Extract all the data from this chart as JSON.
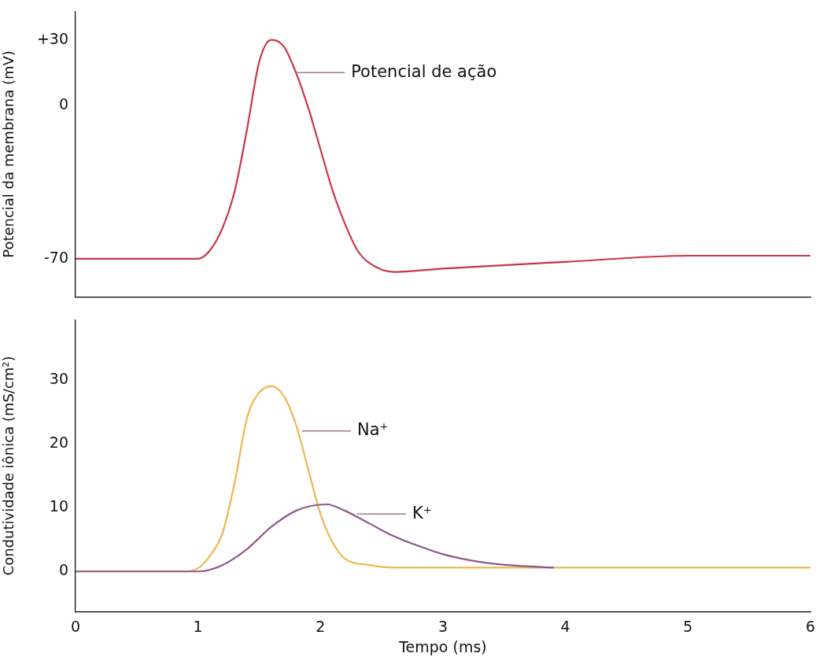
{
  "chart_data": [
    {
      "type": "line",
      "ylabel": "Potencial da membrana (mV)",
      "xlim": [
        0,
        6
      ],
      "ylim": [
        -87.5,
        43
      ],
      "xticks": [
        0,
        1,
        2,
        3,
        4,
        5,
        6
      ],
      "yticks": [
        {
          "value": 30,
          "label": "+30"
        },
        0,
        -70
      ],
      "tick_labels": "y",
      "grid": false,
      "legend": false,
      "marker": "none",
      "line_style": "solid",
      "series": [
        {
          "color": "#c8364a",
          "x": [
            0,
            0.5,
            1,
            1.1,
            1.2,
            1.3,
            1.4,
            1.5,
            1.6,
            1.7,
            1.8,
            1.9,
            2,
            2.1,
            2.2,
            2.3,
            2.4,
            2.6,
            3,
            4,
            5,
            6
          ],
          "values": [
            -70,
            -70,
            -70,
            -66,
            -56,
            -39,
            -11,
            20,
            30,
            27,
            15,
            -1,
            -20,
            -39,
            -54,
            -66,
            -72,
            -76,
            -74.5,
            -71.4,
            -68.6,
            -68.6
          ]
        }
      ],
      "annotations": [
        {
          "text": "Potencial de ação",
          "x": 1.8,
          "y": 15
        }
      ]
    },
    {
      "type": "line",
      "ylabel": "Condutividade iônica (mS/cm²)",
      "xlabel": "Tempo (ms)",
      "xlim": [
        0,
        6
      ],
      "ylim": [
        -6.3,
        39.4
      ],
      "xticks": [
        0,
        1,
        2,
        3,
        4,
        5,
        6
      ],
      "yticks": [
        0,
        10,
        20,
        30
      ],
      "grid": false,
      "legend": false,
      "marker": "none",
      "line_style": "solid",
      "series": [
        {
          "color": "#8e5a8e",
          "x": [
            0,
            0.5,
            1,
            1.2,
            1.4,
            1.6,
            1.8,
            2.05,
            2.2,
            2.4,
            2.6,
            2.8,
            3,
            3.3,
            3.6,
            3.9
          ],
          "values": [
            0,
            0,
            0,
            1,
            3.5,
            7,
            9.5,
            10.5,
            9.5,
            7.5,
            5.5,
            4,
            2.7,
            1.5,
            0.9,
            0.6
          ]
        },
        {
          "color": "#f0b650",
          "x": [
            0,
            0.5,
            0.9,
            1,
            1.1,
            1.2,
            1.3,
            1.4,
            1.5,
            1.6,
            1.7,
            1.8,
            1.9,
            2,
            2.1,
            2.2,
            2.4,
            2.6,
            4,
            6
          ],
          "values": [
            0,
            0,
            0,
            0.5,
            2.5,
            6,
            14,
            24,
            28,
            29,
            27.5,
            23,
            16,
            9,
            4.5,
            2,
            1,
            0.6,
            0.6,
            0.6
          ]
        }
      ],
      "annotations": [
        {
          "text": "Na⁺",
          "x": 1.85,
          "y": 22
        },
        {
          "text": "K⁺",
          "x": 2.3,
          "y": 9
        }
      ]
    }
  ]
}
